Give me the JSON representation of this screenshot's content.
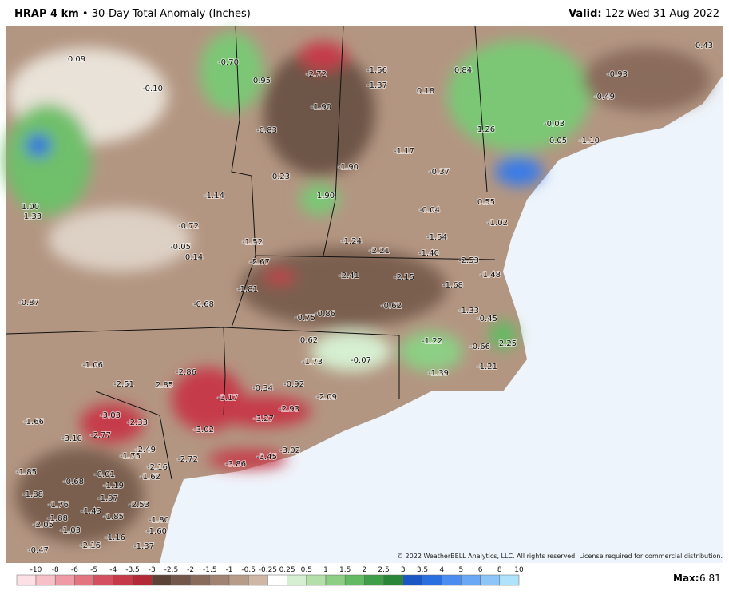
{
  "header": {
    "model": "HRAP 4 km",
    "separator": "•",
    "title": "30-Day Total Anomaly (Inches)",
    "valid_label": "Valid:",
    "valid_time": "12z Wed 31 Aug 2022"
  },
  "map": {
    "labels": [
      "0.09",
      "-0.70",
      "0.95",
      "-2.72",
      "-1.56",
      "-1.37",
      "0.84",
      "-0.93",
      "0.43",
      "-0.10",
      "0.18",
      "-0.49",
      "-1.90",
      "-0.83",
      "-0.03",
      "1.26",
      "-1.17",
      "0.05",
      "-1.10",
      "0.23",
      "-1.90",
      "-0.37",
      "1.00",
      "1.33",
      "-1.14",
      "1.90",
      "0.55",
      "-0.04",
      "-1.02",
      "-0.72",
      "-1.52",
      "-1.24",
      "-2.21",
      "-1.54",
      "-1.40",
      "-2.53",
      "-0.05",
      "0.14",
      "-2.67",
      "-2.41",
      "-2.15",
      "-1.68",
      "-1.48",
      "-1.81",
      "-0.87",
      "-0.68",
      "-0.62",
      "-1.33",
      "-0.75",
      "-0.86",
      "-0.45",
      "0.62",
      "-1.22",
      "-0.66",
      "2.25",
      "-1.73",
      "-0.07",
      "-1.06",
      "-1.21",
      "-2.86",
      "-2.51",
      "2.85",
      "-0.34",
      "-0.92",
      "-1.39",
      "-3.17",
      "-2.09",
      "-3.03",
      "-2.93",
      "-1.66",
      "-2.33",
      "-3.27",
      "-3.02",
      "-3.10",
      "-2.77",
      "-2.49",
      "-1.75",
      "-3.02",
      "-2.72",
      "-3.86",
      "-3.45",
      "-2.16",
      "-1.85",
      "-0.01",
      "-1.62",
      "-0.68",
      "-1.19",
      "-1.88",
      "-1.97",
      "-2.53",
      "-1.76",
      "-1.43",
      "-1.85",
      "-1.88",
      "-1.80",
      "-2.05",
      "-1.60",
      "-1.03",
      "-1.16",
      "-2.16",
      "-0.47",
      "-1.37"
    ],
    "copyright": "© 2022 WeatherBELL Analytics, LLC. All rights reserved. License required for commercial distribution."
  },
  "legend": {
    "ticks": [
      "-10",
      "-8",
      "-6",
      "-5",
      "-4",
      "-3.5",
      "-3",
      "-2.5",
      "-2",
      "-1.5",
      "-1",
      "-0.5",
      "-0.25",
      "0.25",
      "0.5",
      "1",
      "1.5",
      "2",
      "2.5",
      "3",
      "3.5",
      "4",
      "5",
      "6",
      "8",
      "10"
    ],
    "colors": [
      "#fde0e6",
      "#f7c0c8",
      "#ef9aa5",
      "#e27580",
      "#d45060",
      "#c63a48",
      "#b22a35",
      "#5c4336",
      "#73574a",
      "#8a6c5d",
      "#a08372",
      "#b89c8a",
      "#cfb7a6",
      "#ffffff",
      "#d6efd0",
      "#b2e0a8",
      "#8ccf84",
      "#63ba62",
      "#3f9f48",
      "#2a8538",
      "#1a57c4",
      "#2a6fe0",
      "#4b8cf0",
      "#6aa8f5",
      "#8cc6f8",
      "#aee3fb"
    ]
  },
  "max": {
    "label": "Max:",
    "value": "6.81"
  }
}
